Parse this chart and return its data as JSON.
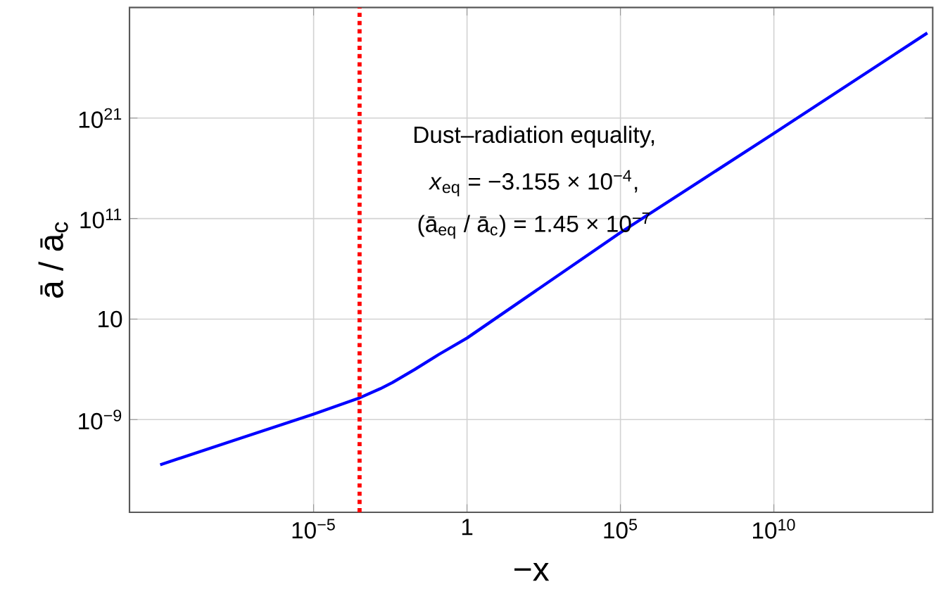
{
  "chart_data": {
    "type": "line",
    "xlabel": "−x",
    "ylabel": "ā / ā$_{c}$",
    "log": "xy",
    "grid": true,
    "xlim": [
      1e-11,
      1500000000000000.0
    ],
    "ylim": [
      6e-19,
      1e+32
    ],
    "xticks": [
      {
        "value": 1e-05,
        "label": "10$^{−5}$"
      },
      1,
      {
        "value": 100000,
        "label": "10$^{5}$"
      },
      {
        "value": 10000000000.0,
        "label": "10$^{10}$"
      }
    ],
    "yticks": [
      {
        "value": 1e-09,
        "label": "10$^{−9}$"
      },
      10,
      {
        "value": 100000000000.0,
        "label": "10$^{11}$"
      },
      {
        "value": 1e+21,
        "label": "10$^{21}$"
      }
    ],
    "series": [
      {
        "color": "#0000ff",
        "line_style": "solid",
        "x": [
          1e-10,
          3e-08,
          1e-05,
          0.0003155,
          0.0015,
          0.0037,
          0.02,
          0.12,
          1,
          100000,
          10000000000.0,
          1000000000000000.0
        ],
        "values": [
          3.2e-14,
          1e-11,
          3.5e-09,
          1.45e-07,
          1.2e-06,
          4.8e-06,
          0.0001,
          0.003,
          0.13,
          4000000000.0,
          3e+19,
          2.9e+29
        ]
      }
    ],
    "ref_lines": [
      {
        "axis": "x",
        "value": 0.0003155,
        "color": "#ff0000",
        "line_style": "dotted"
      }
    ],
    "annotations": [
      "Dust–radiation equality,",
      "*x*$_{eq}$ = −3.155 × 10$^{−4}$,",
      "(ā$_{eq}$ / ā$_{c}$) = 1.45 × 10$^{−7}$"
    ]
  }
}
